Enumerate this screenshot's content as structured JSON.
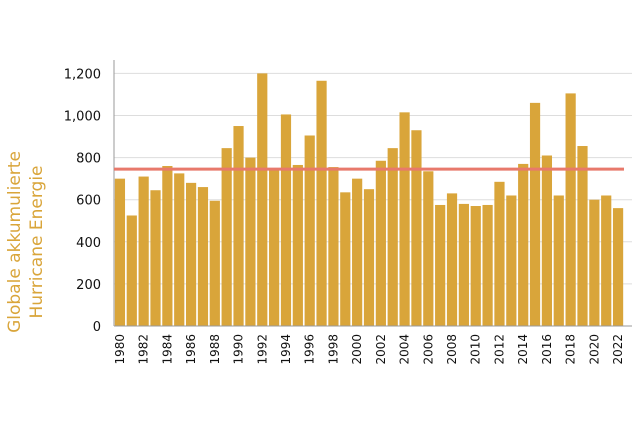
{
  "chart_data": {
    "type": "bar",
    "title": "",
    "xlabel": "",
    "ylabel_lines": [
      "Globale akkumulierte",
      "Hurricane Energie"
    ],
    "ylim": [
      0,
      1260
    ],
    "yticks": [
      0,
      200,
      400,
      600,
      800,
      1000,
      1200
    ],
    "ytick_labels": [
      "0",
      "200",
      "400",
      "600",
      "800",
      "1,000",
      "1,200"
    ],
    "grid": true,
    "categories": [
      "1980",
      "1981",
      "1982",
      "1983",
      "1984",
      "1985",
      "1986",
      "1987",
      "1988",
      "1989",
      "1990",
      "1991",
      "1992",
      "1993",
      "1994",
      "1995",
      "1996",
      "1997",
      "1998",
      "1999",
      "2000",
      "2001",
      "2002",
      "2003",
      "2004",
      "2005",
      "2006",
      "2007",
      "2008",
      "2009",
      "2010",
      "2011",
      "2012",
      "2013",
      "2014",
      "2015",
      "2016",
      "2017",
      "2018",
      "2019",
      "2020",
      "2021",
      "2022"
    ],
    "xtick_labels": [
      "1980",
      "1982",
      "1984",
      "1986",
      "1988",
      "1990",
      "1992",
      "1994",
      "1996",
      "1998",
      "2000",
      "2002",
      "2004",
      "2006",
      "2008",
      "2010",
      "2012",
      "2014",
      "2016",
      "2018",
      "2020",
      "2022"
    ],
    "values": [
      700,
      525,
      710,
      645,
      760,
      725,
      680,
      660,
      595,
      845,
      950,
      800,
      1200,
      750,
      1005,
      765,
      905,
      1165,
      755,
      635,
      700,
      650,
      785,
      845,
      1015,
      930,
      735,
      575,
      630,
      580,
      570,
      575,
      685,
      620,
      770,
      1060,
      810,
      620,
      1105,
      855,
      600,
      620,
      560
    ],
    "reference_line": 745,
    "colors": {
      "bar": "#d9a53a",
      "reference_line": "#e8796b",
      "grid": "#dddddd",
      "axis": "#999999",
      "ylabel": "#d9a53a"
    }
  }
}
